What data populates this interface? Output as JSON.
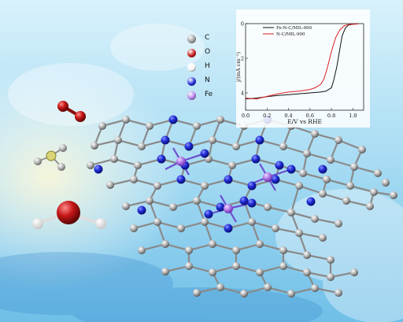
{
  "legend": {
    "items": [
      {
        "symbol": "C",
        "color": "#9a9a9a"
      },
      {
        "symbol": "O",
        "color": "#c41616"
      },
      {
        "symbol": "H",
        "color": "#f4f4f4"
      },
      {
        "symbol": "N",
        "color": "#1f2bd6"
      },
      {
        "symbol": "Fe",
        "color": "#b27ce8"
      }
    ]
  },
  "chart_data": {
    "type": "line",
    "xlabel": "E/V vs RHE",
    "ylabel": "j/(mA cm⁻²)",
    "xlim": [
      0.0,
      1.1
    ],
    "ylim": [
      -5,
      0
    ],
    "x_ticks": [
      "0.0",
      "0.2",
      "0.4",
      "0.6",
      "0.8",
      "1.0"
    ],
    "y_ticks": [
      "0",
      "2",
      "4"
    ],
    "legend_position": "top-right",
    "series": [
      {
        "name": "Fe-N-C/MIL-900",
        "color": "#111111",
        "x": [
          0.0,
          0.1,
          0.2,
          0.3,
          0.4,
          0.5,
          0.6,
          0.7,
          0.75,
          0.8,
          0.82,
          0.85,
          0.88,
          0.9,
          0.93,
          0.96,
          1.0,
          1.05
        ],
        "y": [
          -4.35,
          -4.3,
          -4.22,
          -4.15,
          -4.1,
          -4.05,
          -4.0,
          -3.95,
          -3.9,
          -3.7,
          -3.3,
          -2.5,
          -1.4,
          -0.7,
          -0.25,
          -0.08,
          -0.03,
          -0.02
        ]
      },
      {
        "name": "N-C/MIL-900",
        "color": "#e02020",
        "x": [
          0.0,
          0.1,
          0.2,
          0.3,
          0.4,
          0.5,
          0.55,
          0.6,
          0.65,
          0.7,
          0.73,
          0.76,
          0.8,
          0.84,
          0.88,
          0.92,
          0.96,
          1.0,
          1.05
        ],
        "y": [
          -4.3,
          -4.35,
          -4.2,
          -4.05,
          -3.95,
          -3.9,
          -3.85,
          -3.8,
          -3.7,
          -3.5,
          -3.2,
          -2.6,
          -1.6,
          -0.8,
          -0.35,
          -0.12,
          -0.05,
          -0.03,
          -0.02
        ]
      }
    ]
  }
}
